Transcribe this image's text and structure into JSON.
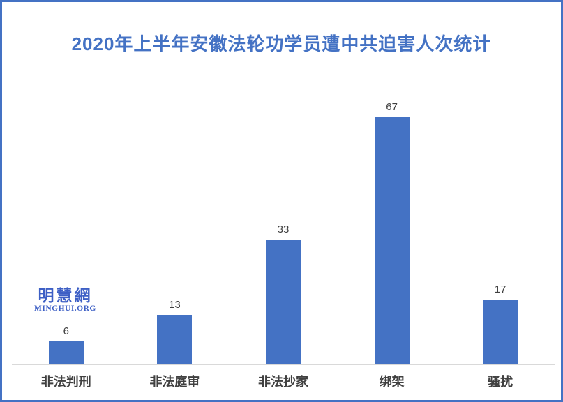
{
  "frame": {
    "border_color": "#4472C4",
    "background": "#FFFFFF"
  },
  "watermark": {
    "name": "明慧網",
    "site": "MINGHUI.ORG",
    "color": "#3D5FC5"
  },
  "chart_data": {
    "type": "bar",
    "title": "2020年上半年安徽法轮功学员遭中共迫害人次统计",
    "title_color": "#4472C4",
    "categories": [
      "非法判刑",
      "非法庭审",
      "非法抄家",
      "绑架",
      "骚扰"
    ],
    "values": [
      6,
      13,
      33,
      67,
      17
    ],
    "xlabel": "",
    "ylabel": "",
    "ylim": [
      0,
      70
    ],
    "grid": false,
    "legend": false,
    "data_labels": true,
    "bar_color": "#4472C4",
    "value_label_color": "#404040",
    "category_label_color": "#404040",
    "axis_line_color": "#D9D9D9"
  }
}
